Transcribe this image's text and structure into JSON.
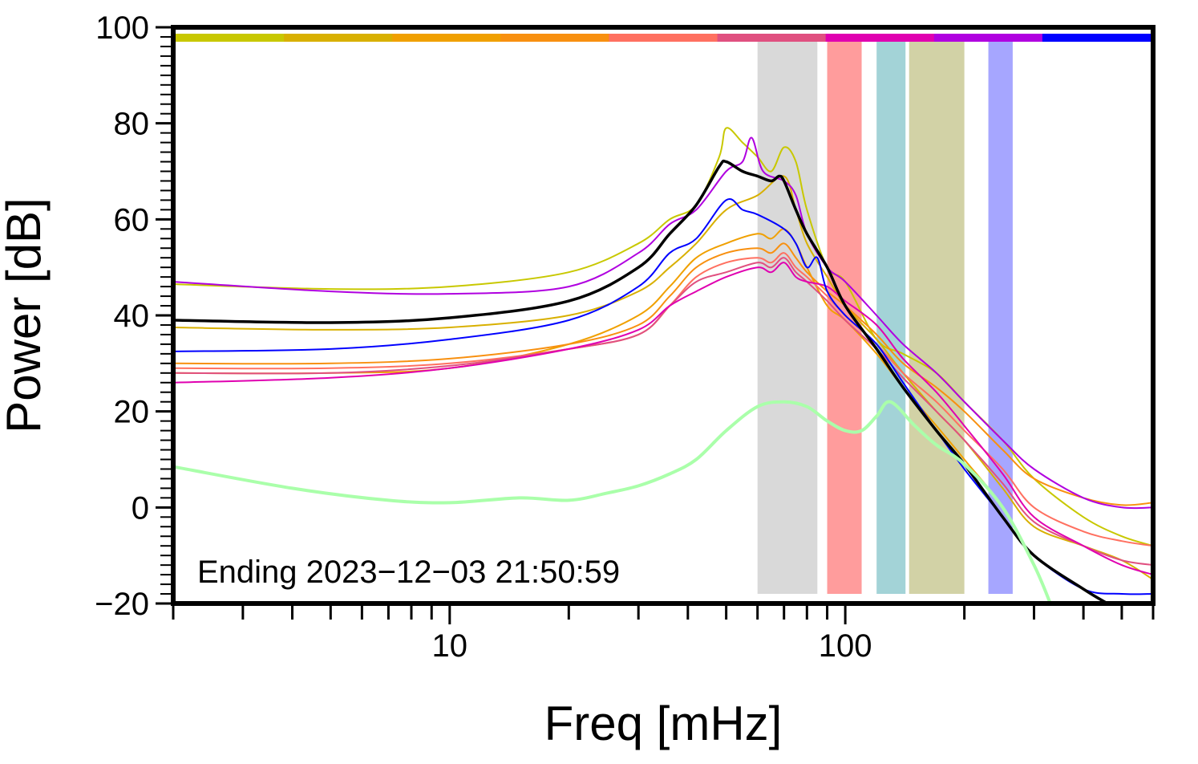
{
  "chart_data": {
    "type": "line",
    "title": "",
    "xlabel": "Freq [mHz]",
    "ylabel": "Power [dB]",
    "xscale": "log",
    "xlim": [
      2,
      600
    ],
    "ylim": [
      -20,
      100
    ],
    "yticks": [
      -20,
      0,
      20,
      40,
      60,
      80,
      100
    ],
    "xtick_labels": [
      {
        "value": 10,
        "label": "10"
      },
      {
        "value": 100,
        "label": "100"
      }
    ],
    "grid": false,
    "annotation": "Ending 2023−12−03 21:50:59",
    "time_bar_colors": [
      "#c8c800",
      "#d8b000",
      "#f0a000",
      "#f89010",
      "#ff7060",
      "#e05080",
      "#e000b0",
      "#b000e0",
      "#0000ff"
    ],
    "bands": [
      {
        "x0": 60,
        "x1": 85,
        "color": "#d9d9d9"
      },
      {
        "x0": 90,
        "x1": 110,
        "color": "#ff9c9c"
      },
      {
        "x0": 120,
        "x1": 142,
        "color": "#a3d3d7"
      },
      {
        "x0": 145,
        "x1": 200,
        "color": "#d2d2a6"
      },
      {
        "x0": 230,
        "x1": 265,
        "color": "#a6a6ff"
      }
    ],
    "series": [
      {
        "color": "#c8c800",
        "width": 2,
        "points": [
          [
            2,
            46.5
          ],
          [
            5,
            45.5
          ],
          [
            10,
            46
          ],
          [
            20,
            49
          ],
          [
            30,
            55
          ],
          [
            36,
            60
          ],
          [
            42,
            63
          ],
          [
            48,
            73
          ],
          [
            50,
            79
          ],
          [
            55,
            76
          ],
          [
            60,
            73
          ],
          [
            65,
            70
          ],
          [
            70,
            75
          ],
          [
            75,
            72
          ],
          [
            80,
            62
          ],
          [
            90,
            50
          ],
          [
            100,
            47
          ],
          [
            120,
            35
          ],
          [
            140,
            32
          ],
          [
            170,
            28
          ],
          [
            200,
            22
          ],
          [
            250,
            14
          ],
          [
            300,
            6
          ],
          [
            400,
            -2
          ],
          [
            500,
            -6
          ],
          [
            600,
            -8
          ]
        ]
      },
      {
        "color": "#d8b000",
        "width": 2,
        "points": [
          [
            2,
            37.5
          ],
          [
            5,
            37
          ],
          [
            10,
            37.5
          ],
          [
            20,
            40
          ],
          [
            30,
            45
          ],
          [
            36,
            50
          ],
          [
            42,
            55
          ],
          [
            50,
            62
          ],
          [
            60,
            65
          ],
          [
            70,
            69
          ],
          [
            75,
            62
          ],
          [
            80,
            55
          ],
          [
            90,
            48
          ],
          [
            100,
            42
          ],
          [
            120,
            35
          ],
          [
            140,
            28
          ],
          [
            170,
            20
          ],
          [
            200,
            14
          ],
          [
            250,
            4
          ],
          [
            300,
            -4
          ],
          [
            400,
            -8
          ],
          [
            500,
            -11
          ],
          [
            600,
            -15
          ]
        ]
      },
      {
        "color": "#f0a000",
        "width": 2,
        "points": [
          [
            2,
            28
          ],
          [
            5,
            28
          ],
          [
            10,
            29
          ],
          [
            20,
            34
          ],
          [
            30,
            40
          ],
          [
            36,
            46
          ],
          [
            42,
            52
          ],
          [
            50,
            55
          ],
          [
            60,
            57
          ],
          [
            65,
            56
          ],
          [
            70,
            58
          ],
          [
            75,
            55
          ],
          [
            80,
            50
          ],
          [
            90,
            42
          ],
          [
            100,
            39
          ],
          [
            120,
            32
          ],
          [
            140,
            25
          ],
          [
            170,
            17
          ],
          [
            200,
            10
          ],
          [
            250,
            0
          ],
          [
            300,
            -12
          ],
          [
            330,
            -20
          ]
        ]
      },
      {
        "color": "#f89010",
        "width": 2,
        "points": [
          [
            2,
            30
          ],
          [
            5,
            30
          ],
          [
            10,
            31
          ],
          [
            20,
            34
          ],
          [
            30,
            38
          ],
          [
            36,
            44
          ],
          [
            42,
            50
          ],
          [
            50,
            53
          ],
          [
            60,
            54
          ],
          [
            65,
            53
          ],
          [
            70,
            55
          ],
          [
            75,
            52
          ],
          [
            80,
            49
          ],
          [
            90,
            45
          ],
          [
            100,
            42
          ],
          [
            120,
            36
          ],
          [
            140,
            30
          ],
          [
            170,
            25
          ],
          [
            200,
            20
          ],
          [
            250,
            12
          ],
          [
            300,
            6
          ],
          [
            400,
            2
          ],
          [
            500,
            0.5
          ],
          [
            600,
            1
          ]
        ]
      },
      {
        "color": "#ff7060",
        "width": 2,
        "points": [
          [
            2,
            29
          ],
          [
            5,
            29
          ],
          [
            10,
            30
          ],
          [
            20,
            33
          ],
          [
            30,
            36
          ],
          [
            36,
            42
          ],
          [
            42,
            48
          ],
          [
            50,
            51
          ],
          [
            60,
            52
          ],
          [
            65,
            51
          ],
          [
            70,
            53
          ],
          [
            75,
            50
          ],
          [
            80,
            48
          ],
          [
            90,
            44
          ],
          [
            100,
            40
          ],
          [
            120,
            34
          ],
          [
            140,
            28
          ],
          [
            170,
            22
          ],
          [
            200,
            16
          ],
          [
            250,
            8
          ],
          [
            300,
            0
          ],
          [
            400,
            -5
          ],
          [
            500,
            -7
          ],
          [
            600,
            -8
          ]
        ]
      },
      {
        "color": "#e05080",
        "width": 2,
        "points": [
          [
            2,
            28
          ],
          [
            5,
            28
          ],
          [
            10,
            29.5
          ],
          [
            20,
            33
          ],
          [
            30,
            36
          ],
          [
            36,
            42
          ],
          [
            42,
            47
          ],
          [
            50,
            49
          ],
          [
            60,
            51
          ],
          [
            65,
            50
          ],
          [
            70,
            52
          ],
          [
            75,
            49
          ],
          [
            80,
            47
          ],
          [
            90,
            43
          ],
          [
            100,
            39
          ],
          [
            120,
            33
          ],
          [
            140,
            27
          ],
          [
            170,
            20
          ],
          [
            200,
            14
          ],
          [
            250,
            5
          ],
          [
            300,
            -3
          ],
          [
            400,
            -8
          ],
          [
            500,
            -11
          ],
          [
            600,
            -12
          ]
        ]
      },
      {
        "color": "#e000b0",
        "width": 2,
        "points": [
          [
            2,
            26
          ],
          [
            5,
            27
          ],
          [
            10,
            29
          ],
          [
            20,
            33
          ],
          [
            30,
            37
          ],
          [
            36,
            42
          ],
          [
            42,
            45
          ],
          [
            50,
            48
          ],
          [
            60,
            50
          ],
          [
            65,
            49
          ],
          [
            70,
            51
          ],
          [
            75,
            48
          ],
          [
            80,
            47
          ],
          [
            90,
            46
          ],
          [
            100,
            43
          ],
          [
            120,
            38
          ],
          [
            140,
            31
          ],
          [
            170,
            24
          ],
          [
            200,
            17
          ],
          [
            250,
            7
          ],
          [
            300,
            -2
          ],
          [
            400,
            -8
          ],
          [
            500,
            -12
          ],
          [
            600,
            -14
          ]
        ]
      },
      {
        "color": "#b000e0",
        "width": 2,
        "points": [
          [
            2,
            47
          ],
          [
            5,
            45
          ],
          [
            10,
            44.5
          ],
          [
            20,
            46
          ],
          [
            30,
            53
          ],
          [
            36,
            59
          ],
          [
            42,
            62
          ],
          [
            50,
            70
          ],
          [
            55,
            72
          ],
          [
            58,
            77
          ],
          [
            62,
            70
          ],
          [
            70,
            68
          ],
          [
            75,
            65
          ],
          [
            80,
            57
          ],
          [
            90,
            50
          ],
          [
            100,
            47
          ],
          [
            120,
            40
          ],
          [
            140,
            34
          ],
          [
            170,
            28
          ],
          [
            200,
            22
          ],
          [
            250,
            14
          ],
          [
            300,
            8
          ],
          [
            400,
            2
          ],
          [
            500,
            0
          ],
          [
            600,
            0
          ]
        ]
      },
      {
        "color": "#0000ff",
        "width": 2,
        "points": [
          [
            2,
            32.5
          ],
          [
            5,
            33
          ],
          [
            10,
            35
          ],
          [
            20,
            39
          ],
          [
            30,
            46
          ],
          [
            36,
            53
          ],
          [
            42,
            56
          ],
          [
            50,
            64
          ],
          [
            55,
            62
          ],
          [
            60,
            61
          ],
          [
            70,
            58
          ],
          [
            75,
            55
          ],
          [
            80,
            50
          ],
          [
            85,
            52
          ],
          [
            90,
            45
          ],
          [
            100,
            40
          ],
          [
            120,
            34
          ],
          [
            140,
            26
          ],
          [
            170,
            16
          ],
          [
            200,
            8
          ],
          [
            250,
            -2
          ],
          [
            300,
            -10
          ],
          [
            400,
            -17
          ],
          [
            500,
            -18
          ],
          [
            600,
            -18
          ]
        ]
      },
      {
        "color": "#000000",
        "width": 3.5,
        "points": [
          [
            2,
            39
          ],
          [
            5,
            38.5
          ],
          [
            10,
            39.5
          ],
          [
            20,
            43
          ],
          [
            30,
            50
          ],
          [
            36,
            57
          ],
          [
            42,
            63
          ],
          [
            48,
            71
          ],
          [
            50,
            72
          ],
          [
            55,
            70
          ],
          [
            60,
            69
          ],
          [
            65,
            68
          ],
          [
            68,
            69
          ],
          [
            70,
            68
          ],
          [
            75,
            62
          ],
          [
            80,
            57
          ],
          [
            90,
            50
          ],
          [
            100,
            42
          ],
          [
            120,
            33
          ],
          [
            140,
            25
          ],
          [
            170,
            16
          ],
          [
            200,
            9
          ],
          [
            250,
            -2
          ],
          [
            300,
            -10
          ],
          [
            400,
            -17
          ],
          [
            460,
            -20
          ]
        ]
      },
      {
        "color": "#aaffaa",
        "width": 4,
        "points": [
          [
            2,
            8.5
          ],
          [
            4,
            4
          ],
          [
            7,
            1.5
          ],
          [
            10,
            1
          ],
          [
            15,
            2
          ],
          [
            20,
            1.5
          ],
          [
            25,
            3
          ],
          [
            30,
            4.5
          ],
          [
            36,
            7
          ],
          [
            42,
            10
          ],
          [
            50,
            16
          ],
          [
            60,
            21
          ],
          [
            70,
            22
          ],
          [
            80,
            21
          ],
          [
            90,
            18
          ],
          [
            100,
            16
          ],
          [
            110,
            16
          ],
          [
            120,
            19
          ],
          [
            130,
            22
          ],
          [
            150,
            17
          ],
          [
            170,
            13
          ],
          [
            200,
            9
          ],
          [
            250,
            0
          ],
          [
            300,
            -12
          ],
          [
            330,
            -20
          ]
        ]
      }
    ]
  }
}
